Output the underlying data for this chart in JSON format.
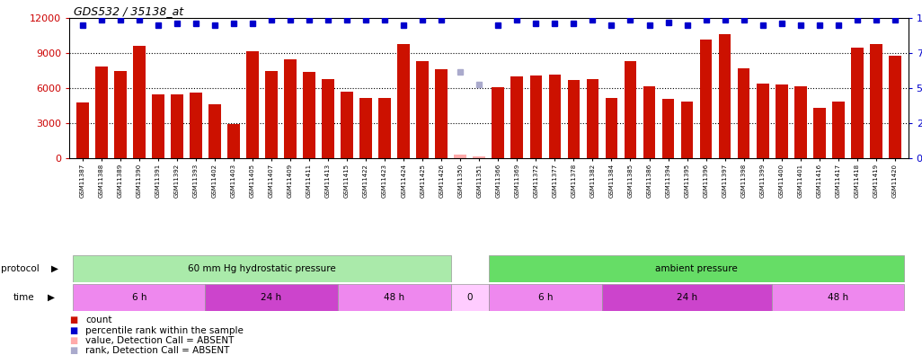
{
  "title": "GDS532 / 35138_at",
  "samples": [
    "GSM11387",
    "GSM11388",
    "GSM11389",
    "GSM11390",
    "GSM11391",
    "GSM11392",
    "GSM11393",
    "GSM11402",
    "GSM11403",
    "GSM11405",
    "GSM11407",
    "GSM11409",
    "GSM11411",
    "GSM11413",
    "GSM11415",
    "GSM11422",
    "GSM11423",
    "GSM11424",
    "GSM11425",
    "GSM11426",
    "GSM11350",
    "GSM11351",
    "GSM11366",
    "GSM11369",
    "GSM11372",
    "GSM11377",
    "GSM11378",
    "GSM11382",
    "GSM11384",
    "GSM11385",
    "GSM11386",
    "GSM11394",
    "GSM11395",
    "GSM11396",
    "GSM11397",
    "GSM11398",
    "GSM11399",
    "GSM11400",
    "GSM11401",
    "GSM11416",
    "GSM11417",
    "GSM11418",
    "GSM11419",
    "GSM11420"
  ],
  "count_values": [
    4800,
    7900,
    7500,
    9600,
    5500,
    5500,
    5600,
    4600,
    2900,
    9200,
    7500,
    8500,
    7400,
    6800,
    5700,
    5200,
    5200,
    9800,
    8300,
    7600,
    350,
    150,
    6100,
    7000,
    7100,
    7200,
    6700,
    6800,
    5200,
    8300,
    6200,
    5100,
    4900,
    10200,
    10600,
    7700,
    6400,
    6300,
    6200,
    4300,
    4900,
    9500,
    9800,
    8800
  ],
  "percentile_values": [
    95,
    99,
    99,
    99,
    95,
    96,
    96,
    95,
    96,
    96,
    99,
    99,
    99,
    99,
    99,
    99,
    99,
    95,
    99,
    99,
    null,
    null,
    95,
    99,
    96,
    96,
    96,
    99,
    95,
    99,
    95,
    97,
    95,
    99,
    99,
    99,
    95,
    96,
    95,
    95,
    95,
    99,
    99,
    99
  ],
  "absent_count_idx": [
    20,
    21
  ],
  "absent_count_vals": [
    350,
    150
  ],
  "absent_rank_vals": [
    62,
    53
  ],
  "bar_color": "#CC1100",
  "marker_color": "#0000CC",
  "absent_bar_color": "#FFAAAA",
  "absent_marker_color": "#AAAACC",
  "ylim_left": [
    0,
    12000
  ],
  "ylim_right": [
    0,
    100
  ],
  "yticks_left": [
    0,
    3000,
    6000,
    9000,
    12000
  ],
  "yticks_right": [
    0,
    25,
    50,
    75,
    100
  ],
  "protocol_sections": [
    {
      "label": "60 mm Hg hydrostatic pressure",
      "start": 0,
      "end": 19,
      "color": "#AAEAAA"
    },
    {
      "label": "ambient pressure",
      "start": 22,
      "end": 43,
      "color": "#66DD66"
    }
  ],
  "time_sections": [
    {
      "label": "6 h",
      "start": 0,
      "end": 6,
      "color": "#EE88EE"
    },
    {
      "label": "24 h",
      "start": 7,
      "end": 13,
      "color": "#CC44CC"
    },
    {
      "label": "48 h",
      "start": 14,
      "end": 19,
      "color": "#EE88EE"
    },
    {
      "label": "0",
      "start": 20,
      "end": 21,
      "color": "#FFCCFF"
    },
    {
      "label": "6 h",
      "start": 22,
      "end": 27,
      "color": "#EE88EE"
    },
    {
      "label": "24 h",
      "start": 28,
      "end": 36,
      "color": "#CC44CC"
    },
    {
      "label": "48 h",
      "start": 37,
      "end": 43,
      "color": "#EE88EE"
    }
  ],
  "legend_items": [
    {
      "label": "count",
      "color": "#CC1100"
    },
    {
      "label": "percentile rank within the sample",
      "color": "#0000CC"
    },
    {
      "label": "value, Detection Call = ABSENT",
      "color": "#FFAAAA"
    },
    {
      "label": "rank, Detection Call = ABSENT",
      "color": "#AAAACC"
    }
  ]
}
